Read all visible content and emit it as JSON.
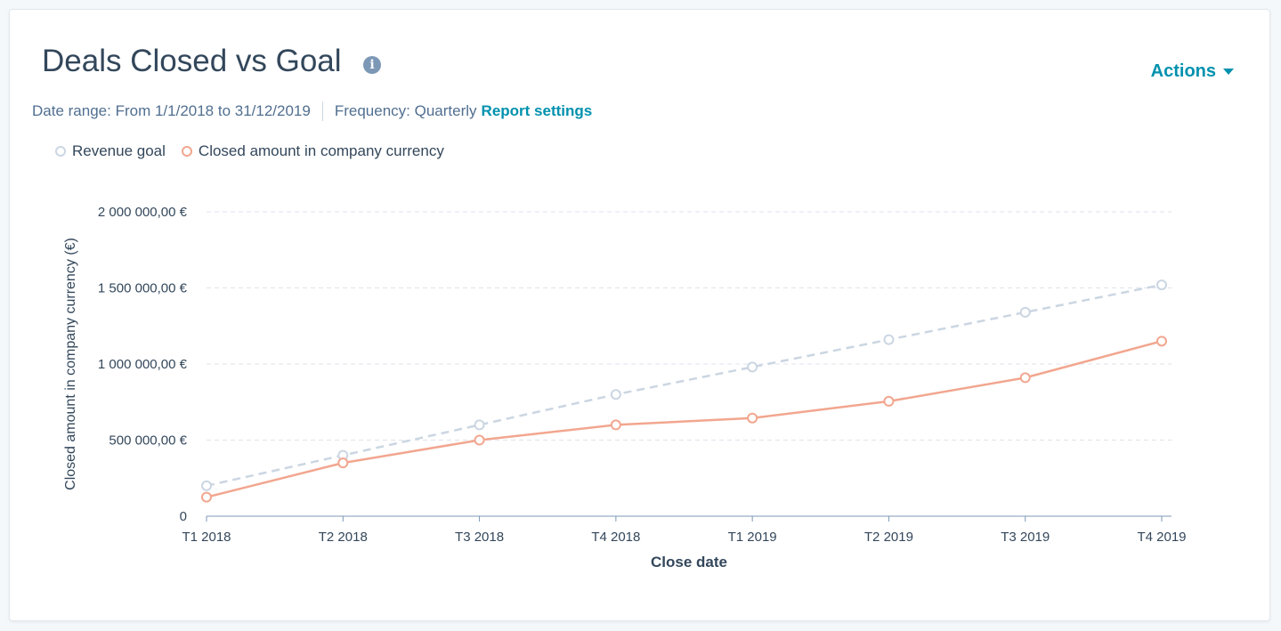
{
  "header": {
    "title": "Deals Closed vs Goal",
    "info_icon": "info-icon",
    "actions_label": "Actions"
  },
  "meta": {
    "date_range_label": "Date range:",
    "date_range_value": "From 1/1/2018 to 31/12/2019",
    "frequency_label": "Frequency:",
    "frequency_value": "Quarterly",
    "report_settings_label": "Report settings"
  },
  "colors": {
    "goal": "#cbd6e2",
    "closed": "#f2a68f",
    "accent": "#0091ae"
  },
  "chart_data": {
    "type": "line",
    "title": "",
    "xlabel": "Close date",
    "ylabel": "Closed amount in company currency (€)",
    "x": [
      "T1 2018",
      "T2 2018",
      "T3 2018",
      "T4 2018",
      "T1 2019",
      "T2 2019",
      "T3 2019",
      "T4 2019"
    ],
    "ylim": [
      0,
      2000000
    ],
    "yticks": [
      {
        "value": 0,
        "label": "0"
      },
      {
        "value": 500000,
        "label": "500 000,00 €"
      },
      {
        "value": 1000000,
        "label": "1 000 000,00 €"
      },
      {
        "value": 1500000,
        "label": "1 500 000,00 €"
      },
      {
        "value": 2000000,
        "label": "2 000 000,00 €"
      }
    ],
    "grid": true,
    "legend": "top-left",
    "series": [
      {
        "name": "Revenue goal",
        "style": "dashed",
        "values": [
          200000,
          400000,
          600000,
          800000,
          980000,
          1160000,
          1340000,
          1520000
        ]
      },
      {
        "name": "Closed amount in company currency",
        "style": "solid",
        "values": [
          125000,
          350000,
          500000,
          600000,
          645000,
          755000,
          910000,
          1150000
        ]
      }
    ]
  }
}
